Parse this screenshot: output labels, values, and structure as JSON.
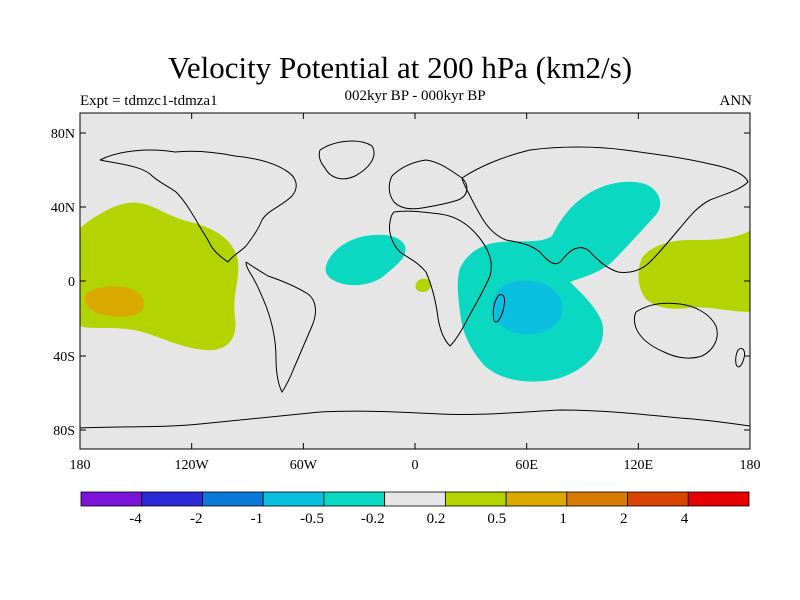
{
  "title": "Velocity Potential at 200 hPa (km2/s)",
  "subtitle": "002kyr BP - 000kyr BP",
  "left_string": "Expt = tdmzc1-tdmza1",
  "right_string": "ANN",
  "lat_ticks": [
    "80N",
    "40N",
    "0",
    "40S",
    "80S"
  ],
  "lon_ticks": [
    "180",
    "120W",
    "60W",
    "0",
    "60E",
    "120E",
    "180"
  ],
  "colorbar": {
    "labels": [
      "-4",
      "-2",
      "-1",
      "-0.5",
      "-0.2",
      "0.2",
      "0.5",
      "1",
      "2",
      "4"
    ],
    "colors": [
      "#7b14d8",
      "#2a2ad6",
      "#0a78d8",
      "#0abfdf",
      "#0ad8c0",
      "#e6e6e6",
      "#b3d400",
      "#d9a900",
      "#d97a00",
      "#d94400",
      "#e60000"
    ]
  },
  "colors": {
    "background": "#e6e6e6",
    "coast": "#000000"
  }
}
